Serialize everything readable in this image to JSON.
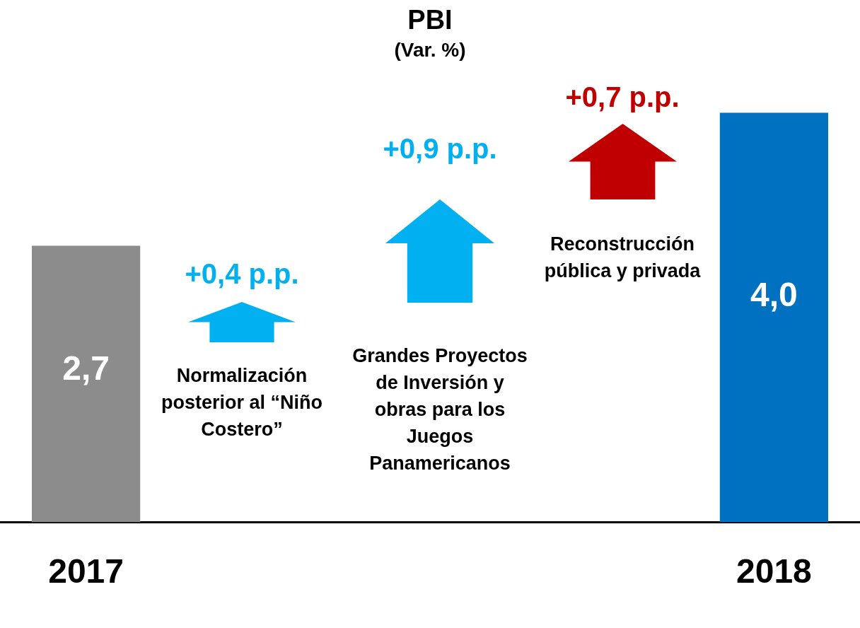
{
  "chart_data": {
    "type": "bar",
    "title": "PBI",
    "subtitle": "(Var. %)",
    "categories": [
      "2017",
      null,
      null,
      null,
      "2018"
    ],
    "values": [
      2.7,
      null,
      null,
      null,
      4.0
    ],
    "colors": [
      "#8c8c8c",
      null,
      null,
      null,
      "#0070c0"
    ],
    "value_labels": [
      "2,7",
      null,
      null,
      null,
      "4,0"
    ],
    "grid": false,
    "annotations": [
      "+0,4 p.p.",
      "Normalización posterior al “Niño Costero”",
      "+0,9 p.p.",
      "Grandes Proyectos de Inversión y obras para los Juegos Panamericanos",
      "+0,7 p.p.",
      "Reconstrucción pública y privada"
    ]
  }
}
